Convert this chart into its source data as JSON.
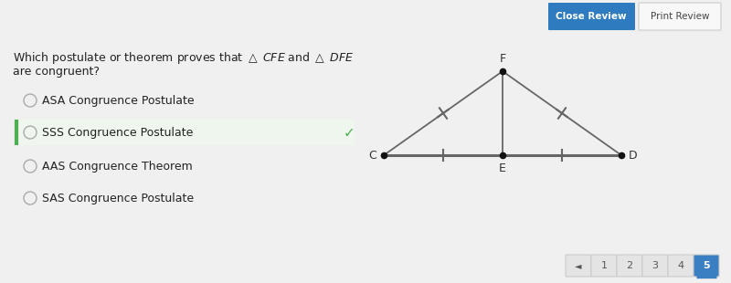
{
  "bg_color": "#f0f0f0",
  "header_bg": "#f0f0f0",
  "main_bg": "#ffffff",
  "close_btn_color": "#2e7cbf",
  "close_btn_text": "Close Review",
  "print_btn_text": "Print Review",
  "options": [
    {
      "label": "ASA Congruence Postulate",
      "selected": false
    },
    {
      "label": "SSS Congruence Postulate",
      "selected": true
    },
    {
      "label": "AAS Congruence Theorem",
      "selected": false
    },
    {
      "label": "SAS Congruence Postulate",
      "selected": false
    }
  ],
  "selected_bg": "#eef6ee",
  "selected_border": "#4caf50",
  "check_color": "#4caf50",
  "triangle_color": "#666666",
  "point_color": "#111111",
  "label_color": "#333333",
  "nav_numbers": [
    "1",
    "2",
    "3",
    "4",
    "5"
  ],
  "nav_active": 4,
  "nav_active_color": "#3a7fc1",
  "nav_bg": "#e4e4e4",
  "nav_border": "#cccccc"
}
